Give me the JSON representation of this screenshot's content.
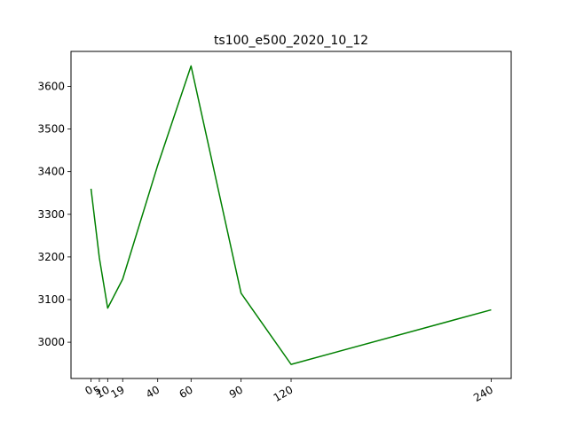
{
  "chart_data": {
    "type": "line",
    "title": "ts100_e500_2020_10_12",
    "xlabel": "",
    "ylabel": "",
    "x": [
      0,
      5,
      10,
      19,
      40,
      60,
      90,
      120,
      240
    ],
    "x_tick_labels": [
      "0",
      "5",
      "10",
      "19",
      "40",
      "60",
      "90",
      "120",
      "240"
    ],
    "x_tick_rotation_deg": 30,
    "y_ticks": [
      3000,
      3100,
      3200,
      3300,
      3400,
      3500,
      3600
    ],
    "xlim": [
      -12,
      252
    ],
    "ylim": [
      2915,
      3682
    ],
    "series": [
      {
        "color": "#008000",
        "values": [
          3360,
          3198,
          3080,
          3148,
          3415,
          3648,
          3115,
          2948,
          3076
        ]
      }
    ],
    "grid": false,
    "legend": "none"
  }
}
